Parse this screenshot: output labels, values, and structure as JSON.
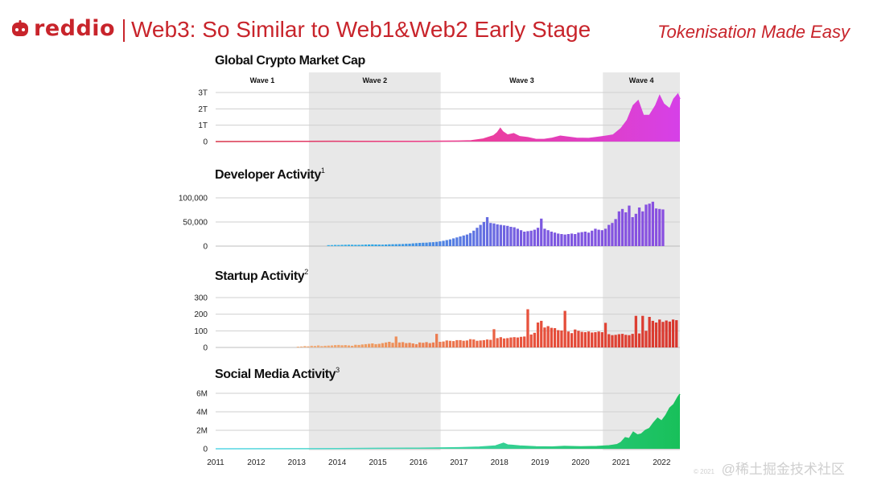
{
  "header": {
    "logo_text": "reddio",
    "title": "Web3: So Similar to Web1&Web2 Early Stage",
    "tagline": "Tokenisation Made Easy"
  },
  "watermark": {
    "small": "© 2021",
    "main": "@稀土掘金技术社区"
  },
  "colors": {
    "brand": "#c8242b"
  },
  "chart_data": {
    "type": "area",
    "x_axis": {
      "ticks": [
        "2011",
        "2012",
        "2013",
        "2014",
        "2015",
        "2016",
        "2017",
        "2018",
        "2019",
        "2020",
        "2021",
        "2022"
      ],
      "range": [
        2011.0,
        2022.45
      ]
    },
    "waves": [
      {
        "label": "Wave 1",
        "shaded": false,
        "start": 2011.0,
        "end": 2013.3
      },
      {
        "label": "Wave 2",
        "shaded": true,
        "start": 2013.3,
        "end": 2016.55
      },
      {
        "label": "Wave 3",
        "shaded": false,
        "start": 2016.55,
        "end": 2020.55
      },
      {
        "label": "Wave 4",
        "shaded": true,
        "start": 2020.55,
        "end": 2022.45
      }
    ],
    "panels": [
      {
        "title": "Global Crypto Market Cap",
        "sup": "",
        "type": "area",
        "yticks": [
          "0",
          "1T",
          "2T",
          "3T"
        ],
        "ylim": [
          0,
          3
        ],
        "gradient": [
          "#d8364a",
          "#f03d8e",
          "#d640e8"
        ],
        "points": [
          [
            2011.0,
            0
          ],
          [
            2013.0,
            0.01
          ],
          [
            2013.9,
            0.02
          ],
          [
            2014.5,
            0.01
          ],
          [
            2016.0,
            0.01
          ],
          [
            2017.0,
            0.03
          ],
          [
            2017.3,
            0.05
          ],
          [
            2017.6,
            0.15
          ],
          [
            2017.85,
            0.35
          ],
          [
            2017.95,
            0.55
          ],
          [
            2018.02,
            0.8
          ],
          [
            2018.08,
            0.6
          ],
          [
            2018.2,
            0.4
          ],
          [
            2018.35,
            0.48
          ],
          [
            2018.5,
            0.3
          ],
          [
            2018.7,
            0.24
          ],
          [
            2018.9,
            0.13
          ],
          [
            2019.1,
            0.13
          ],
          [
            2019.3,
            0.2
          ],
          [
            2019.5,
            0.33
          ],
          [
            2019.65,
            0.28
          ],
          [
            2019.9,
            0.2
          ],
          [
            2020.2,
            0.19
          ],
          [
            2020.4,
            0.25
          ],
          [
            2020.6,
            0.32
          ],
          [
            2020.8,
            0.4
          ],
          [
            2021.0,
            0.8
          ],
          [
            2021.15,
            1.3
          ],
          [
            2021.3,
            2.2
          ],
          [
            2021.42,
            2.5
          ],
          [
            2021.55,
            1.6
          ],
          [
            2021.7,
            1.6
          ],
          [
            2021.85,
            2.2
          ],
          [
            2021.95,
            2.8
          ],
          [
            2022.05,
            2.3
          ],
          [
            2022.2,
            2.0
          ],
          [
            2022.3,
            2.6
          ],
          [
            2022.4,
            2.9
          ],
          [
            2022.45,
            2.6
          ]
        ]
      },
      {
        "title": "Developer Activity",
        "sup": "1",
        "type": "bar",
        "yticks": [
          "0",
          "50,000",
          "100,000"
        ],
        "ylim": [
          0,
          100000
        ],
        "gradient": [
          "#6cc8e9",
          "#2aa7e5",
          "#7a5ae0",
          "#8b4ee0"
        ],
        "start": 2013.75,
        "step": 0.08333,
        "values": [
          2000,
          2200,
          2500,
          2400,
          2600,
          2800,
          3000,
          2900,
          2700,
          2600,
          2800,
          3100,
          3300,
          3500,
          3400,
          3200,
          3000,
          3300,
          3600,
          3800,
          4000,
          4200,
          4400,
          4800,
          5000,
          5600,
          6200,
          6600,
          7000,
          7200,
          7800,
          8200,
          8800,
          9800,
          11000,
          12500,
          14000,
          16000,
          18000,
          20000,
          22000,
          24000,
          27000,
          32000,
          38000,
          44000,
          50000,
          60000,
          48000,
          47000,
          45000,
          44000,
          43000,
          42000,
          40000,
          39000,
          36000,
          33000,
          30000,
          31000,
          32000,
          34000,
          38000,
          57000,
          36000,
          33000,
          30000,
          28000,
          26000,
          25000,
          24000,
          25000,
          26000,
          25000,
          28000,
          29000,
          30000,
          28000,
          32000,
          36000,
          34000,
          33000,
          36000,
          44000,
          48000,
          56000,
          72000,
          77000,
          70000,
          84000,
          60000,
          67000,
          80000,
          72000,
          86000,
          88000,
          92000,
          78000,
          77000,
          76000
        ]
      },
      {
        "title": "Startup Activity",
        "sup": "2",
        "type": "bar",
        "yticks": [
          "0",
          "100",
          "200",
          "300"
        ],
        "ylim": [
          0,
          300
        ],
        "gradient": [
          "#f3c9a4",
          "#ee9a60",
          "#e8533d",
          "#d8362e"
        ],
        "start": 2013.0,
        "step": 0.08333,
        "values": [
          5,
          6,
          8,
          7,
          10,
          9,
          12,
          8,
          10,
          11,
          12,
          14,
          15,
          13,
          14,
          12,
          10,
          16,
          15,
          18,
          20,
          22,
          24,
          20,
          22,
          26,
          30,
          34,
          28,
          66,
          30,
          32,
          26,
          28,
          24,
          20,
          30,
          28,
          32,
          26,
          30,
          82,
          34,
          36,
          42,
          40,
          38,
          44,
          44,
          40,
          42,
          50,
          48,
          40,
          42,
          44,
          48,
          46,
          110,
          56,
          62,
          54,
          56,
          60,
          62,
          60,
          64,
          66,
          230,
          78,
          88,
          150,
          160,
          120,
          128,
          118,
          116,
          104,
          102,
          220,
          96,
          86,
          108,
          100,
          94,
          92,
          96,
          90,
          92,
          96,
          92,
          148,
          80,
          74,
          76,
          80,
          82,
          76,
          74,
          82,
          190,
          84,
          190,
          100,
          184,
          160,
          150,
          168,
          154,
          162,
          156,
          168,
          164,
          166
        ]
      },
      {
        "title": "Social Media Activity",
        "sup": "3",
        "type": "area",
        "yticks": [
          "0",
          "2M",
          "4M",
          "6M"
        ],
        "ylim": [
          0,
          6
        ],
        "gradient": [
          "#58d6e8",
          "#3ed4a4",
          "#18c05a"
        ],
        "points": [
          [
            2011.0,
            0
          ],
          [
            2013.0,
            0.01
          ],
          [
            2014.0,
            0.03
          ],
          [
            2015.0,
            0.05
          ],
          [
            2016.0,
            0.07
          ],
          [
            2017.0,
            0.12
          ],
          [
            2017.5,
            0.18
          ],
          [
            2017.9,
            0.3
          ],
          [
            2018.1,
            0.6
          ],
          [
            2018.2,
            0.42
          ],
          [
            2018.5,
            0.3
          ],
          [
            2018.9,
            0.22
          ],
          [
            2019.3,
            0.2
          ],
          [
            2019.6,
            0.26
          ],
          [
            2020.0,
            0.22
          ],
          [
            2020.4,
            0.25
          ],
          [
            2020.7,
            0.32
          ],
          [
            2020.9,
            0.45
          ],
          [
            2021.0,
            0.7
          ],
          [
            2021.1,
            1.2
          ],
          [
            2021.2,
            1.1
          ],
          [
            2021.3,
            1.8
          ],
          [
            2021.4,
            1.5
          ],
          [
            2021.5,
            1.6
          ],
          [
            2021.6,
            2.0
          ],
          [
            2021.7,
            2.2
          ],
          [
            2021.8,
            2.8
          ],
          [
            2021.9,
            3.3
          ],
          [
            2022.0,
            3.0
          ],
          [
            2022.1,
            3.6
          ],
          [
            2022.2,
            4.4
          ],
          [
            2022.3,
            4.8
          ],
          [
            2022.4,
            5.6
          ],
          [
            2022.45,
            5.9
          ]
        ]
      }
    ]
  }
}
